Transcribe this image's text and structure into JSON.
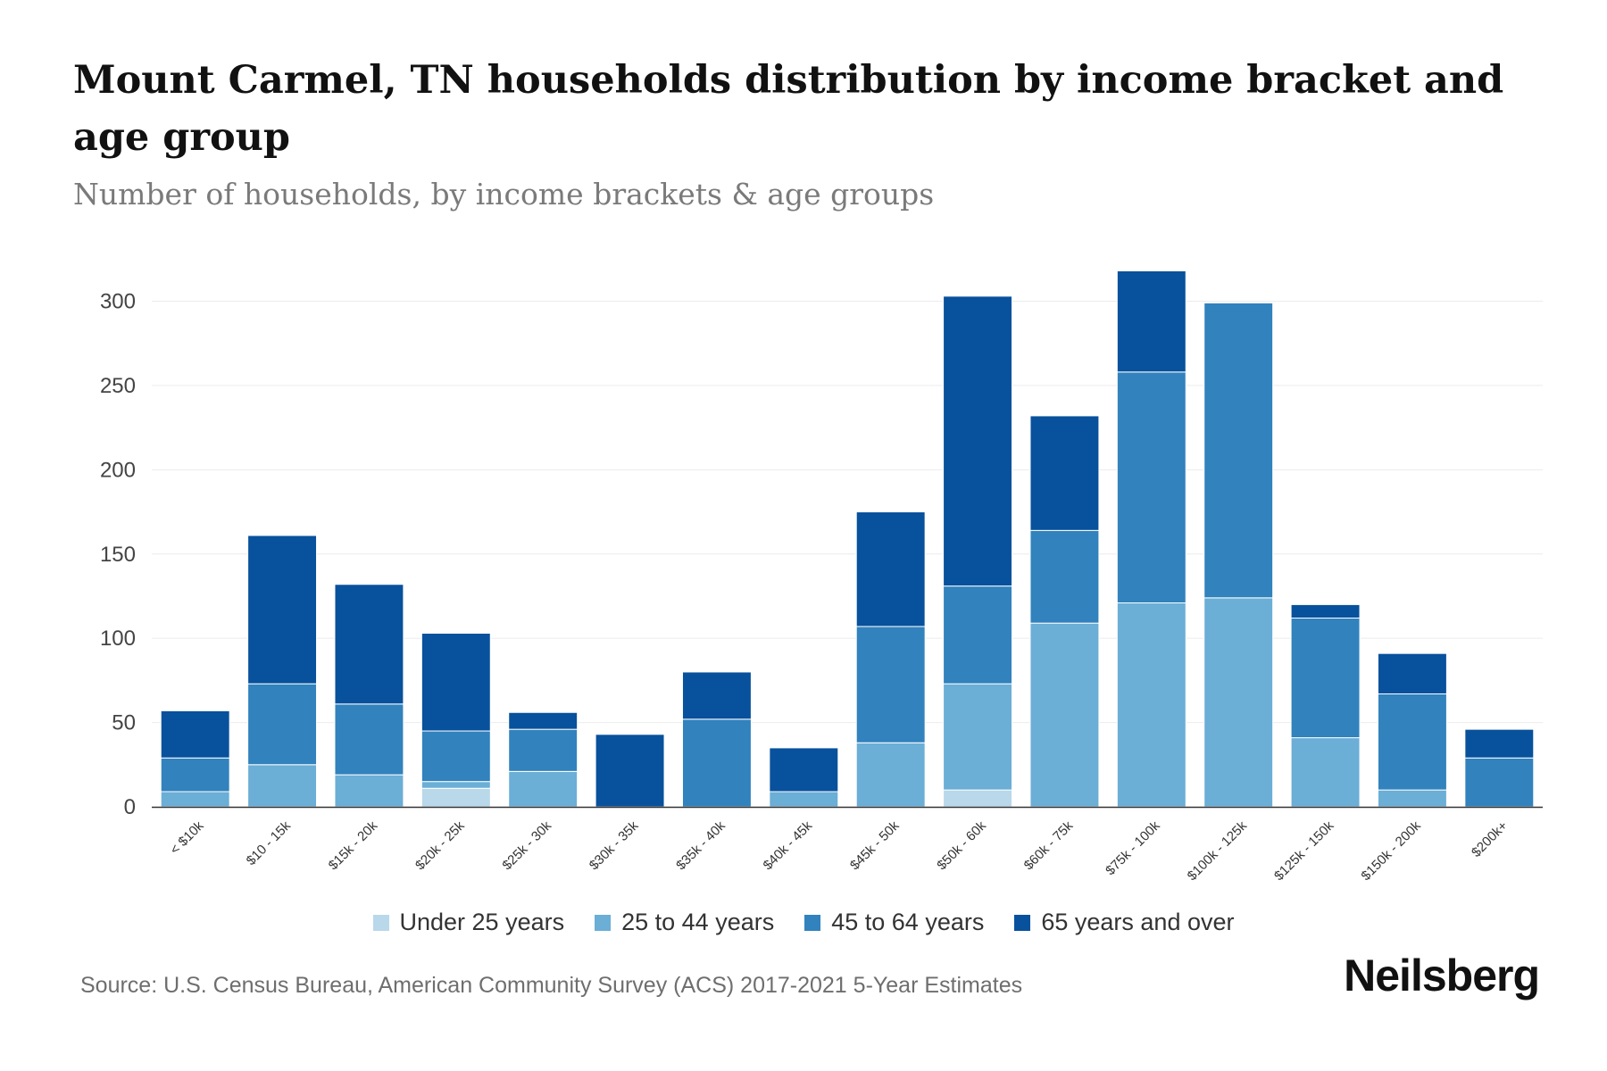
{
  "header": {
    "title": "Mount Carmel, TN households distribution by income bracket and age group",
    "subtitle": "Number of households, by income brackets & age groups"
  },
  "footer": {
    "source": "Source: U.S. Census Bureau, American Community Survey (ACS) 2017-2021 5-Year Estimates",
    "brand": "Neilsberg"
  },
  "colors": {
    "under_25": "#b9d8ea",
    "age_25_44": "#6baed6",
    "age_45_64": "#3182bd",
    "age_65_plus": "#08519c",
    "grid": "#ececec",
    "axis": "#333333"
  },
  "chart_data": {
    "type": "bar",
    "stacked": true,
    "title": "Mount Carmel, TN households distribution by income bracket and age group",
    "subtitle": "Number of households, by income brackets & age groups",
    "xlabel": "",
    "ylabel": "",
    "ylim": [
      0,
      320
    ],
    "yticks": [
      0,
      50,
      100,
      150,
      200,
      250,
      300
    ],
    "grid": true,
    "legend_position": "bottom",
    "categories": [
      "< $10k",
      "$10 - 15k",
      "$15k - 20k",
      "$20k - 25k",
      "$25k - 30k",
      "$30k - 35k",
      "$35k - 40k",
      "$40k - 45k",
      "$45k - 50k",
      "$50k - 60k",
      "$60k - 75k",
      "$75k - 100k",
      "$100k - 125k",
      "$125k - 150k",
      "$150k - 200k",
      "$200k+"
    ],
    "series": [
      {
        "name": "Under 25 years",
        "color": "#b9d8ea",
        "values": [
          0,
          0,
          0,
          11,
          0,
          0,
          0,
          0,
          0,
          10,
          0,
          0,
          0,
          0,
          0,
          0
        ]
      },
      {
        "name": "25 to 44 years",
        "color": "#6baed6",
        "values": [
          9,
          25,
          19,
          4,
          21,
          0,
          0,
          9,
          38,
          63,
          109,
          121,
          124,
          41,
          10,
          0
        ]
      },
      {
        "name": "45 to 64 years",
        "color": "#3182bd",
        "values": [
          20,
          48,
          42,
          30,
          25,
          0,
          52,
          0,
          69,
          58,
          55,
          137,
          175,
          71,
          57,
          29
        ]
      },
      {
        "name": "65 years and over",
        "color": "#08519c",
        "values": [
          28,
          88,
          71,
          58,
          10,
          43,
          28,
          26,
          68,
          172,
          68,
          60,
          0,
          8,
          24,
          17
        ]
      }
    ]
  }
}
